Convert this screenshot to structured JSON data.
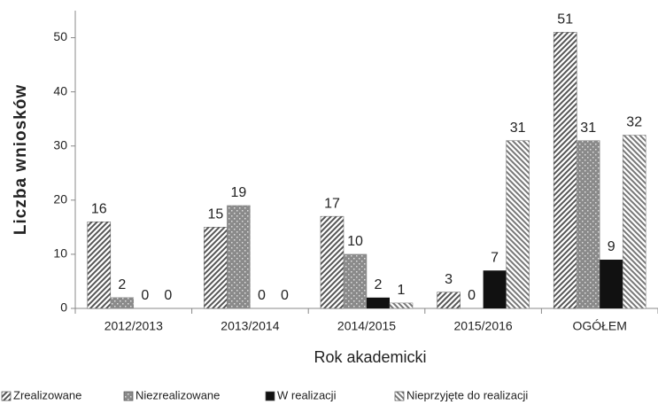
{
  "chart_data": {
    "type": "bar",
    "y_label": "Liczba wniosków",
    "x_label": "Rok akademicki",
    "categories": [
      "2012/2013",
      "2013/2014",
      "2014/2015",
      "2015/2016",
      "OGÓŁEM"
    ],
    "series": [
      {
        "name": "Zrealizowane",
        "color": "#555555",
        "pattern": "diagonal",
        "values": [
          16,
          15,
          17,
          3,
          51
        ]
      },
      {
        "name": "Niezrealizowane",
        "color": "#8a8a8a",
        "pattern": "dots",
        "values": [
          2,
          19,
          10,
          0,
          31
        ]
      },
      {
        "name": "W realizacji",
        "color": "#111111",
        "pattern": "solid",
        "values": [
          0,
          0,
          2,
          7,
          9
        ]
      },
      {
        "name": "Nieprzyjęte do realizacji",
        "color": "#777777",
        "pattern": "backdiagonal",
        "values": [
          0,
          0,
          1,
          31,
          32
        ]
      }
    ],
    "ylim": [
      0,
      55
    ],
    "yticks": [
      0,
      10,
      20,
      30,
      40,
      50
    ],
    "grid": false,
    "legend": "bottom"
  }
}
